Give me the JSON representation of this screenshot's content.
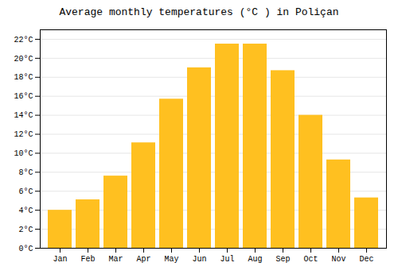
{
  "chart_data": {
    "type": "bar",
    "title": "Average monthly temperatures (°C ) in Poliçan",
    "categories": [
      "Jan",
      "Feb",
      "Mar",
      "Apr",
      "May",
      "Jun",
      "Jul",
      "Aug",
      "Sep",
      "Oct",
      "Nov",
      "Dec"
    ],
    "values": [
      4.0,
      5.1,
      7.6,
      11.1,
      15.7,
      19.0,
      21.5,
      21.5,
      18.7,
      14.0,
      9.3,
      5.3
    ],
    "color": "#FFC020",
    "ylim": [
      0,
      23
    ],
    "yticks": [
      {
        "value": 0,
        "label": "0°C"
      },
      {
        "value": 2,
        "label": "2°C"
      },
      {
        "value": 4,
        "label": "4°C"
      },
      {
        "value": 6,
        "label": "6°C"
      },
      {
        "value": 8,
        "label": "8°C"
      },
      {
        "value": 10,
        "label": "10°C"
      },
      {
        "value": 12,
        "label": "12°C"
      },
      {
        "value": 14,
        "label": "14°C"
      },
      {
        "value": 16,
        "label": "16°C"
      },
      {
        "value": 18,
        "label": "18°C"
      },
      {
        "value": 20,
        "label": "20°C"
      },
      {
        "value": 22,
        "label": "22°C"
      }
    ],
    "grid": true
  }
}
